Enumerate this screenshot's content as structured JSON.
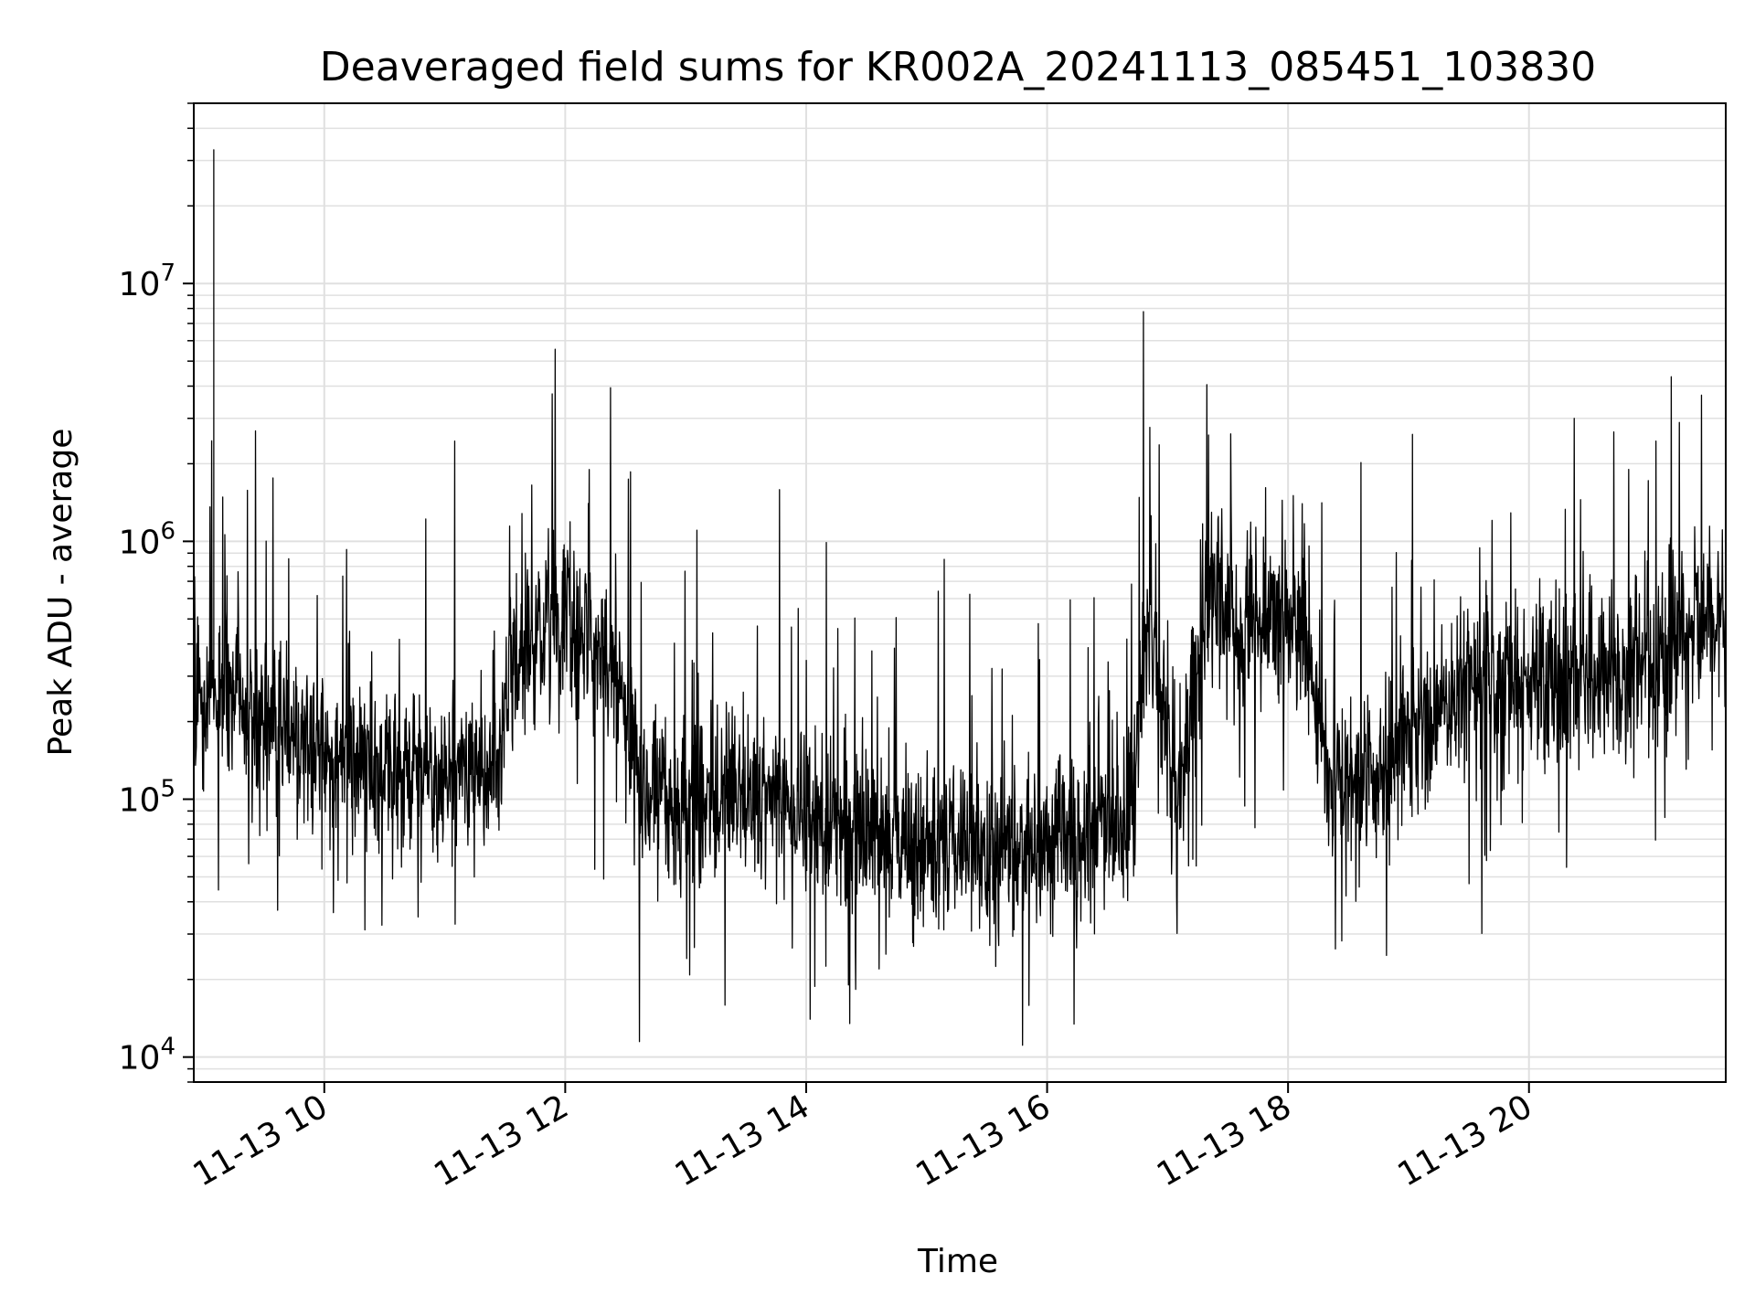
{
  "chart_data": {
    "type": "line",
    "title": "Deaveraged field sums for KR002A_20241113_085451_103830",
    "xlabel": "Time",
    "ylabel": "Peak ADU - average",
    "yscale": "log",
    "grid": true,
    "line_color": "#000000",
    "grid_color": "#e0e0e0",
    "xlim": [
      "2024-11-13 08:55",
      "2024-11-13 21:38"
    ],
    "ylim": [
      8000,
      50000000
    ],
    "x_ticks": [
      {
        "value": "2024-11-13 10:00",
        "label": "11-13 10"
      },
      {
        "value": "2024-11-13 12:00",
        "label": "11-13 12"
      },
      {
        "value": "2024-11-13 14:00",
        "label": "11-13 14"
      },
      {
        "value": "2024-11-13 16:00",
        "label": "11-13 16"
      },
      {
        "value": "2024-11-13 18:00",
        "label": "11-13 18"
      },
      {
        "value": "2024-11-13 20:00",
        "label": "11-13 20"
      }
    ],
    "y_ticks": [
      {
        "value": 10000,
        "base": "10",
        "exp": "4"
      },
      {
        "value": 100000,
        "base": "10",
        "exp": "5"
      },
      {
        "value": 1000000,
        "base": "10",
        "exp": "6"
      },
      {
        "value": 10000000,
        "base": "10",
        "exp": "7"
      }
    ],
    "series": [
      {
        "x": [
          "2024-11-13 08:55",
          "2024-11-13 09:05",
          "2024-11-13 09:10",
          "2024-11-13 09:30",
          "2024-11-13 10:00",
          "2024-11-13 10:30",
          "2024-11-13 11:00",
          "2024-11-13 11:25",
          "2024-11-13 11:35",
          "2024-11-13 11:50",
          "2024-11-13 12:10",
          "2024-11-13 12:25",
          "2024-11-13 12:40",
          "2024-11-13 13:00",
          "2024-11-13 13:30",
          "2024-11-13 14:00",
          "2024-11-13 14:20",
          "2024-11-13 14:45",
          "2024-11-13 15:15",
          "2024-11-13 15:45",
          "2024-11-13 16:10",
          "2024-11-13 16:40",
          "2024-11-13 16:50",
          "2024-11-13 17:05",
          "2024-11-13 17:20",
          "2024-11-13 17:40",
          "2024-11-13 17:55",
          "2024-11-13 18:10",
          "2024-11-13 18:20",
          "2024-11-13 18:40",
          "2024-11-13 19:00",
          "2024-11-13 19:30",
          "2024-11-13 20:00",
          "2024-11-13 20:30",
          "2024-11-13 21:00",
          "2024-11-13 21:20",
          "2024-11-13 21:38"
        ],
        "y": [
          220000,
          33000000,
          260000,
          200000,
          150000,
          140000,
          120000,
          130000,
          330000,
          500000,
          500000,
          330000,
          90000,
          100000,
          100000,
          90000,
          70000,
          65000,
          65000,
          65000,
          75000,
          80000,
          500000,
          90000,
          600000,
          500000,
          600000,
          400000,
          110000,
          120000,
          170000,
          250000,
          270000,
          300000,
          320000,
          450000,
          550000
        ]
      }
    ]
  }
}
